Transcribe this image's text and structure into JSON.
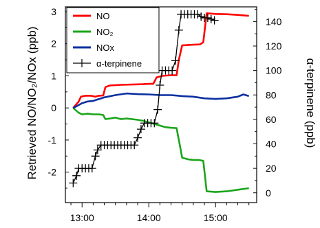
{
  "chart_data": {
    "type": "line",
    "title": "",
    "ylabel_left": "Retrieved NO/NO₂/NOx (ppb)",
    "ylabel_right": "α-terpinene (ppb)",
    "xlabel": "",
    "xlim": [
      "12:45",
      "15:37"
    ],
    "ylim_left": [
      -2.95,
      3.15
    ],
    "ylim_right": [
      -8,
      152
    ],
    "x_ticks": [
      "13:00",
      "14:00",
      "15:00"
    ],
    "y_ticks_left": [
      "3",
      "2",
      "1",
      "0",
      "-1",
      "-2"
    ],
    "y_ticks_right": [
      "140",
      "120",
      "100",
      "80",
      "60",
      "40",
      "20",
      "0"
    ],
    "legend_position": "top-left",
    "series": [
      {
        "name": "NO",
        "axis": "left",
        "color": "#ff0000",
        "style": "line",
        "points": [
          [
            "12:52",
            0.0
          ],
          [
            "12:57",
            0.2
          ],
          [
            "12:59",
            0.35
          ],
          [
            "13:03",
            0.38
          ],
          [
            "13:08",
            0.38
          ],
          [
            "13:12",
            0.35
          ],
          [
            "13:15",
            0.38
          ],
          [
            "13:19",
            0.39
          ],
          [
            "13:21",
            0.65
          ],
          [
            "13:25",
            0.7
          ],
          [
            "13:35",
            0.72
          ],
          [
            "13:45",
            0.73
          ],
          [
            "13:55",
            0.74
          ],
          [
            "14:00",
            0.75
          ],
          [
            "14:04",
            0.75
          ],
          [
            "14:07",
            0.95
          ],
          [
            "14:12",
            1.0
          ],
          [
            "14:20",
            1.02
          ],
          [
            "14:25",
            1.02
          ],
          [
            "14:27",
            1.5
          ],
          [
            "14:30",
            1.95
          ],
          [
            "14:40",
            1.97
          ],
          [
            "14:46",
            1.98
          ],
          [
            "14:49",
            2.05
          ],
          [
            "14:52",
            2.95
          ],
          [
            "15:00",
            2.93
          ],
          [
            "15:10",
            2.92
          ],
          [
            "15:20",
            2.9
          ],
          [
            "15:30",
            2.87
          ]
        ]
      },
      {
        "name": "NO₂",
        "axis": "left",
        "color": "#1aa51a",
        "style": "line",
        "points": [
          [
            "12:52",
            0.0
          ],
          [
            "12:57",
            -0.15
          ],
          [
            "13:00",
            -0.2
          ],
          [
            "13:05",
            -0.18
          ],
          [
            "13:10",
            -0.2
          ],
          [
            "13:15",
            -0.2
          ],
          [
            "13:19",
            -0.22
          ],
          [
            "13:21",
            -0.35
          ],
          [
            "13:25",
            -0.33
          ],
          [
            "13:30",
            -0.3
          ],
          [
            "13:35",
            -0.35
          ],
          [
            "13:40",
            -0.33
          ],
          [
            "13:45",
            -0.35
          ],
          [
            "13:50",
            -0.37
          ],
          [
            "13:55",
            -0.4
          ],
          [
            "14:00",
            -0.45
          ],
          [
            "14:05",
            -0.5
          ],
          [
            "14:10",
            -0.55
          ],
          [
            "14:15",
            -0.6
          ],
          [
            "14:20",
            -0.62
          ],
          [
            "14:25",
            -0.63
          ],
          [
            "14:27",
            -1.0
          ],
          [
            "14:30",
            -1.55
          ],
          [
            "14:35",
            -1.6
          ],
          [
            "14:40",
            -1.62
          ],
          [
            "14:45",
            -1.62
          ],
          [
            "14:49",
            -1.65
          ],
          [
            "14:52",
            -2.6
          ],
          [
            "15:00",
            -2.62
          ],
          [
            "15:10",
            -2.6
          ],
          [
            "15:20",
            -2.55
          ],
          [
            "15:30",
            -2.5
          ]
        ]
      },
      {
        "name": "NOx",
        "axis": "left",
        "color": "#0a2fa0",
        "style": "line",
        "points": [
          [
            "12:52",
            0.0
          ],
          [
            "12:55",
            0.05
          ],
          [
            "13:00",
            0.15
          ],
          [
            "13:05",
            0.2
          ],
          [
            "13:10",
            0.22
          ],
          [
            "13:20",
            0.33
          ],
          [
            "13:30",
            0.4
          ],
          [
            "13:40",
            0.45
          ],
          [
            "13:50",
            0.43
          ],
          [
            "14:00",
            0.42
          ],
          [
            "14:10",
            0.4
          ],
          [
            "14:20",
            0.4
          ],
          [
            "14:30",
            0.37
          ],
          [
            "14:40",
            0.35
          ],
          [
            "14:50",
            0.3
          ],
          [
            "15:00",
            0.28
          ],
          [
            "15:10",
            0.3
          ],
          [
            "15:20",
            0.35
          ],
          [
            "15:25",
            0.42
          ],
          [
            "15:30",
            0.37
          ]
        ]
      },
      {
        "name": "α-terpinene",
        "axis": "right",
        "color": "#000000",
        "style": "line-plus",
        "points": [
          [
            "12:52",
            8
          ],
          [
            "12:55",
            14
          ],
          [
            "12:57",
            20
          ],
          [
            "13:00",
            20
          ],
          [
            "13:03",
            20
          ],
          [
            "13:06",
            20
          ],
          [
            "13:09",
            20
          ],
          [
            "13:12",
            30
          ],
          [
            "13:14",
            35
          ],
          [
            "13:17",
            39
          ],
          [
            "13:20",
            39
          ],
          [
            "13:23",
            39
          ],
          [
            "13:26",
            39
          ],
          [
            "13:29",
            39
          ],
          [
            "13:32",
            39
          ],
          [
            "13:35",
            39
          ],
          [
            "13:38",
            39
          ],
          [
            "13:41",
            39
          ],
          [
            "13:44",
            39
          ],
          [
            "13:47",
            39
          ],
          [
            "13:50",
            45
          ],
          [
            "13:53",
            52
          ],
          [
            "13:56",
            57
          ],
          [
            "13:59",
            57
          ],
          [
            "14:02",
            57
          ],
          [
            "14:05",
            57
          ],
          [
            "14:08",
            68
          ],
          [
            "14:10",
            88
          ],
          [
            "14:12",
            100
          ],
          [
            "14:15",
            100
          ],
          [
            "14:18",
            100
          ],
          [
            "14:21",
            100
          ],
          [
            "14:24",
            108
          ],
          [
            "14:27",
            133
          ],
          [
            "14:29",
            146
          ],
          [
            "14:32",
            146
          ],
          [
            "14:35",
            146
          ],
          [
            "14:38",
            146
          ],
          [
            "14:41",
            146
          ],
          [
            "14:44",
            146
          ],
          [
            "14:47",
            144
          ],
          [
            "14:50",
            143
          ],
          [
            "14:53",
            143
          ],
          [
            "14:56",
            142
          ],
          [
            "14:59",
            141
          ]
        ]
      }
    ]
  }
}
